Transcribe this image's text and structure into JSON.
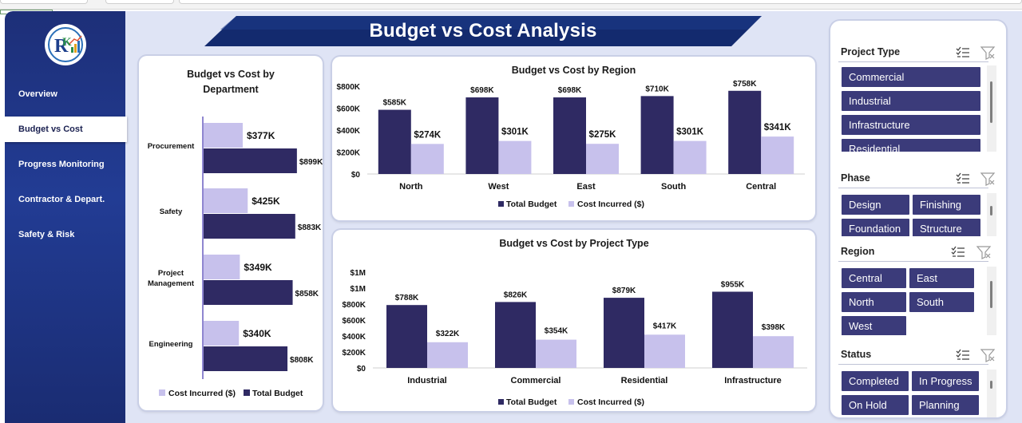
{
  "nav": {
    "items": [
      {
        "label": "Overview",
        "active": false
      },
      {
        "label": "Budget vs Cost",
        "active": true
      },
      {
        "label": "Progress Monitoring",
        "active": false
      },
      {
        "label": "Contractor & Depart.",
        "active": false
      },
      {
        "label": "Safety & Risk",
        "active": false
      }
    ]
  },
  "header": {
    "title": "Budget vs Cost Analysis"
  },
  "colors": {
    "budget": "#2f2a63",
    "cost": "#c7c1ec",
    "sidebar": "#1f3487",
    "chip": "#3b3b7a"
  },
  "department_chart": {
    "title_line1": "Budget vs Cost by",
    "title_line2": "Department",
    "legend": {
      "cost": "Cost Incurred ($)",
      "budget": "Total Budget"
    },
    "chart_data": {
      "type": "bar",
      "orientation": "horizontal",
      "categories": [
        "Procurement",
        "Safety",
        "Project Management",
        "Engineering"
      ],
      "category_labels": [
        [
          "Procurement"
        ],
        [
          "Safety"
        ],
        [
          "Project",
          "Management"
        ],
        [
          "Engineering"
        ]
      ],
      "series": [
        {
          "name": "Cost Incurred ($)",
          "values": [
            377,
            425,
            349,
            340
          ],
          "labels": [
            "$377K",
            "$425K",
            "$349K",
            "$340K"
          ]
        },
        {
          "name": "Total Budget",
          "values": [
            899,
            883,
            858,
            808
          ],
          "labels": [
            "$899K",
            "$883K",
            "$858K",
            "$808K"
          ]
        }
      ],
      "units": "K",
      "legend_position": "bottom"
    }
  },
  "region_chart": {
    "title": "Budget vs Cost by Region",
    "legend": {
      "budget": "Total Budget",
      "cost": "Cost Incurred ($)"
    },
    "chart_data": {
      "type": "bar",
      "categories": [
        "North",
        "West",
        "East",
        "South",
        "Central"
      ],
      "series": [
        {
          "name": "Total Budget",
          "values": [
            585,
            698,
            698,
            710,
            758
          ],
          "labels": [
            "$585K",
            "$698K",
            "$698K",
            "$710K",
            "$758K"
          ]
        },
        {
          "name": "Cost Incurred ($)",
          "values": [
            274,
            301,
            275,
            301,
            341
          ],
          "labels": [
            "$274K",
            "$301K",
            "$275K",
            "$301K",
            "$341K"
          ]
        }
      ],
      "y_ticks": [
        "$0",
        "$200K",
        "$400K",
        "$600K",
        "$800K"
      ],
      "ylim": [
        0,
        800
      ],
      "units": "K",
      "legend_position": "bottom"
    }
  },
  "project_chart": {
    "title": "Budget vs Cost by Project Type",
    "legend": {
      "budget": "Total Budget",
      "cost": "Cost Incurred ($)"
    },
    "chart_data": {
      "type": "bar",
      "categories": [
        "Industrial",
        "Commercial",
        "Residential",
        "Infrastructure"
      ],
      "series": [
        {
          "name": "Total Budget",
          "values": [
            788,
            826,
            879,
            955
          ],
          "labels": [
            "$788K",
            "$826K",
            "$879K",
            "$955K"
          ]
        },
        {
          "name": "Cost Incurred ($)",
          "values": [
            322,
            354,
            417,
            398
          ],
          "labels": [
            "$322K",
            "$354K",
            "$417K",
            "$398K"
          ]
        }
      ],
      "y_ticks": [
        "$0",
        "$200K",
        "$400K",
        "$600K",
        "$800K",
        "$1M",
        "$1M"
      ],
      "ylim": [
        0,
        1200
      ],
      "units": "K",
      "legend_position": "bottom"
    }
  },
  "slicers": [
    {
      "title": "Project Type",
      "items": [
        "Commercial",
        "Industrial",
        "Infrastructure",
        "Residential"
      ]
    },
    {
      "title": "Phase",
      "items": [
        "Design",
        "Finishing",
        "Foundation",
        "Structure"
      ]
    },
    {
      "title": "Region",
      "items": [
        "Central",
        "East",
        "North",
        "South",
        "West"
      ]
    },
    {
      "title": "Status",
      "items": [
        "Completed",
        "In Progress",
        "On Hold",
        "Planning"
      ]
    }
  ]
}
